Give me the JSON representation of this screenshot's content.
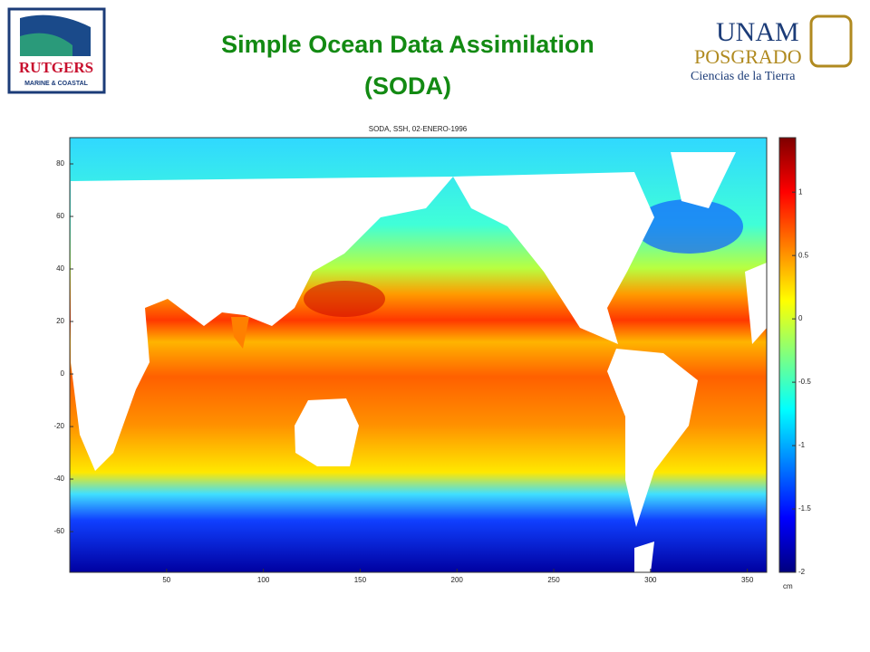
{
  "header": {
    "title_lines": [
      "Simple Ocean Data Assimilation",
      "(SODA)"
    ],
    "left_logo": [
      "RUTGERS",
      "MARINE & COASTAL"
    ],
    "right_logo": [
      "UNAM",
      "POSGRADO",
      "Ciencias de la Tierra"
    ]
  },
  "map": {
    "title": "SODA, SSH, 02-ENERO-1996",
    "xlim": [
      0,
      360
    ],
    "ylim": [
      -75.5,
      90
    ],
    "xticks": [
      50,
      100,
      150,
      200,
      250,
      300,
      350
    ],
    "yticks": [
      80,
      60,
      40,
      20,
      0,
      -20,
      -40,
      -60
    ],
    "colorbar": {
      "lim": [
        -2,
        1.43
      ],
      "ticks": [
        1,
        0.5,
        0,
        -0.5,
        -1,
        -1.5,
        -2
      ],
      "unit": "cm"
    }
  }
}
